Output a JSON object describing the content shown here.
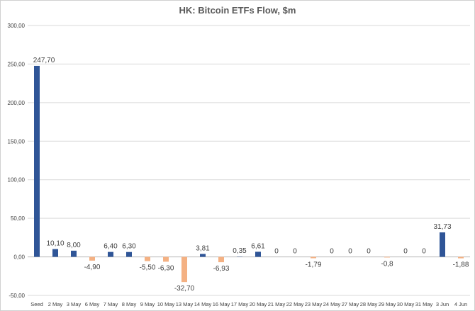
{
  "chart_data": {
    "type": "bar",
    "title": "HK: Bitcoin ETFs Flow, $m",
    "xlabel": "",
    "ylabel": "",
    "ylim": [
      -50,
      300
    ],
    "yticks": [
      -50,
      0,
      50,
      100,
      150,
      200,
      250,
      300
    ],
    "ytick_labels": [
      "-50,00",
      "0,00",
      "50,00",
      "100,00",
      "150,00",
      "200,00",
      "250,00",
      "300,00"
    ],
    "grid": true,
    "legend": "none",
    "colors": {
      "positive": "#2f5597",
      "negative": "#f4b183",
      "grid": "#d9d9d9",
      "text": "#404040"
    },
    "categories": [
      "Seed",
      "2 May",
      "3 May",
      "6 May",
      "7 May",
      "8 May",
      "9 May",
      "10 May",
      "13 May",
      "14 May",
      "16 May",
      "17 May",
      "20 May",
      "21 May",
      "22 May",
      "23 May",
      "24 May",
      "27 May",
      "28 May",
      "29 May",
      "30 May",
      "31 May",
      "3 Jun",
      "4 Jun"
    ],
    "values": [
      247.7,
      10.1,
      8.0,
      -4.9,
      6.4,
      6.3,
      -5.5,
      -6.3,
      -32.7,
      3.81,
      -6.93,
      0.35,
      6.61,
      0,
      0,
      -1.79,
      0,
      0,
      0,
      -0.8,
      0,
      0,
      31.73,
      -1.88
    ],
    "data_labels": [
      "247,70",
      "10,10",
      "8,00",
      "-4,90",
      "6,40",
      "6,30",
      "-5,50",
      "-6,30",
      "-32,70",
      "3,81",
      "-6,93",
      "0,35",
      "6,61",
      "0",
      "0",
      "-1,79",
      "0",
      "0",
      "0",
      "-0,8",
      "0",
      "0",
      "31,73",
      "-1,88"
    ]
  }
}
